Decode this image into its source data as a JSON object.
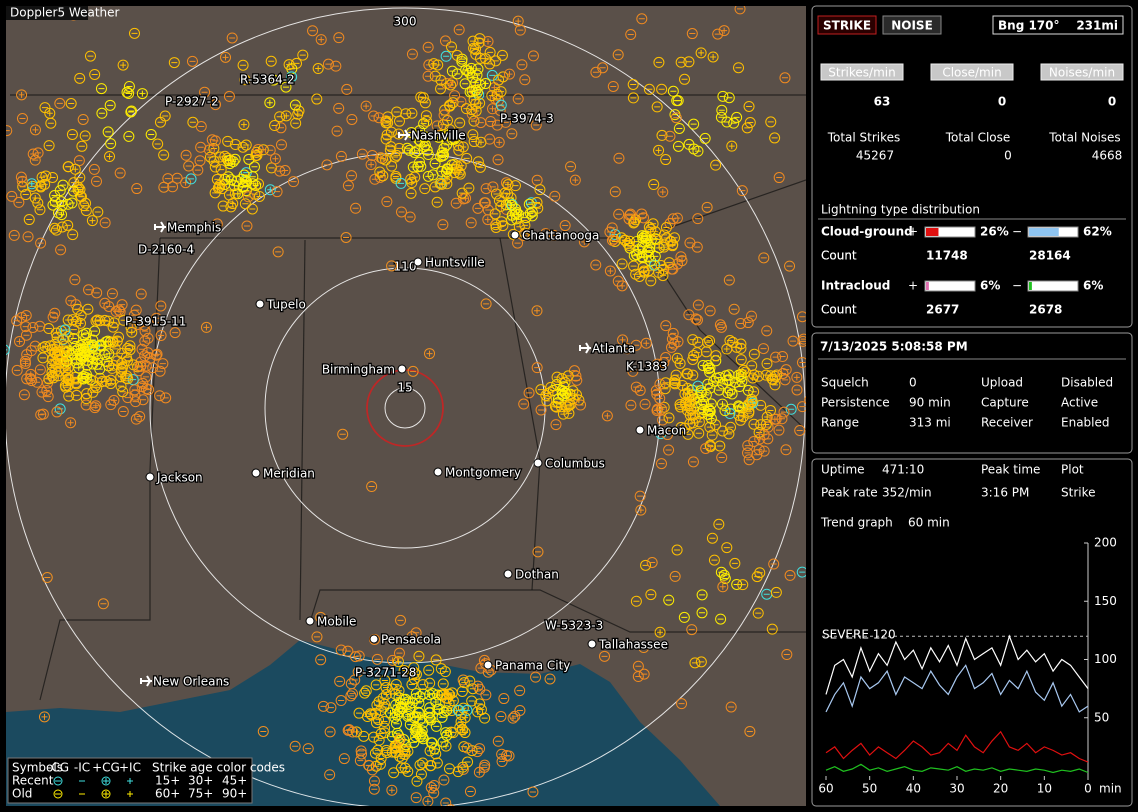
{
  "map": {
    "badge": "Doppler5 Weather",
    "ring_labels": [
      "300",
      "110",
      "15"
    ],
    "storm_labels": [
      "R-5364-2",
      "P-2927-2",
      "P-3974-3",
      "D-2160-4",
      "P-3915-11",
      "K-1383",
      "W-5323-3",
      "P-3271-28"
    ],
    "cities": [
      "Nashville",
      "Memphis",
      "Chattanooga",
      "Huntsville",
      "Tupelo",
      "Atlanta",
      "Birmingham",
      "Macon",
      "Jackson",
      "Meridian",
      "Montgomery",
      "Columbus",
      "Dothan",
      "Mobile",
      "Pensacola",
      "Tallahassee",
      "Panama City",
      "New Orleans"
    ],
    "legend": {
      "symbols": "Symbols",
      "types": [
        "-CG",
        "-IC",
        "+CG",
        "+IC"
      ],
      "age_title": "Strike age color codes",
      "rows": [
        "Recent",
        "Old"
      ],
      "ages": [
        [
          "15+",
          "30+",
          "45+"
        ],
        [
          "60+",
          "75+",
          "90+"
        ]
      ]
    }
  },
  "status": {
    "strike": "STRIKE",
    "noise": "NOISE",
    "bearing": "Bng 170°",
    "distance": "231mi"
  },
  "rates": {
    "labels": [
      "Strikes/min",
      "Close/min",
      "Noises/min"
    ],
    "values": [
      63,
      0,
      0
    ],
    "total_labels": [
      "Total Strikes",
      "Total Close",
      "Total Noises"
    ],
    "totals": [
      45267,
      0,
      4668
    ]
  },
  "distribution": {
    "title": "Lightning type distribution",
    "count_label": "Count",
    "rows": [
      {
        "name": "Cloud-ground",
        "signs": [
          "+",
          "−"
        ],
        "values": [
          26,
          62
        ],
        "value_labels": [
          "26%",
          "62%"
        ],
        "colors": [
          "#e01010",
          "#8ec4f0"
        ],
        "counts": [
          11748,
          28164
        ]
      },
      {
        "name": "Intracloud",
        "signs": [
          "+",
          "−"
        ],
        "values": [
          6,
          6
        ],
        "value_labels": [
          "6%",
          "6%"
        ],
        "colors": [
          "#e070b0",
          "#20c020"
        ],
        "counts": [
          2677,
          2678
        ]
      }
    ]
  },
  "settings": {
    "datetime": "7/13/2025 5:08:58 PM",
    "items": [
      [
        "Squelch",
        0
      ],
      [
        "Persistence",
        "90 min"
      ],
      [
        "Range",
        "313 mi"
      ]
    ],
    "states": [
      [
        "Upload",
        "Disabled"
      ],
      [
        "Capture",
        "Active"
      ],
      [
        "Receiver",
        "Enabled"
      ]
    ]
  },
  "stats": {
    "uptime_label": "Uptime",
    "uptime": "471:10",
    "peak_time_label": "Peak time",
    "plot_label": "Plot",
    "peak_rate_label": "Peak rate",
    "peak_rate": "352/min",
    "peak_time": "3:16 PM",
    "plot": "Strike",
    "trend_label": "Trend graph",
    "trend_window": "60 min"
  },
  "trend": {
    "type": "line",
    "x": [
      60,
      58,
      56,
      54,
      52,
      50,
      48,
      46,
      44,
      42,
      40,
      38,
      36,
      34,
      32,
      30,
      28,
      26,
      24,
      22,
      20,
      18,
      16,
      14,
      12,
      10,
      8,
      6,
      4,
      2,
      0
    ],
    "xlim": [
      60,
      0
    ],
    "xticks": [
      60,
      50,
      40,
      30,
      20,
      10,
      0
    ],
    "x_unit": "min",
    "ylim": [
      0,
      200
    ],
    "yticks": [
      50,
      100,
      150,
      200
    ],
    "severe": 120,
    "severe_label": "SEVERE 120",
    "series": [
      {
        "color": "#ffffff",
        "values": [
          70,
          95,
          100,
          85,
          110,
          90,
          105,
          95,
          115,
          100,
          108,
          92,
          110,
          98,
          112,
          95,
          118,
          100,
          105,
          110,
          95,
          120,
          100,
          108,
          98,
          105,
          90,
          100,
          95,
          85,
          75
        ]
      },
      {
        "color": "#a8c8f0",
        "values": [
          55,
          70,
          80,
          60,
          85,
          75,
          80,
          90,
          70,
          85,
          80,
          75,
          90,
          78,
          70,
          85,
          95,
          75,
          80,
          88,
          70,
          82,
          75,
          90,
          72,
          65,
          80,
          60,
          70,
          55,
          60
        ]
      },
      {
        "color": "#e01010",
        "values": [
          20,
          25,
          15,
          22,
          28,
          18,
          25,
          20,
          15,
          22,
          30,
          25,
          18,
          20,
          28,
          22,
          35,
          25,
          20,
          30,
          38,
          25,
          22,
          28,
          20,
          25,
          22,
          18,
          20,
          15,
          12
        ]
      },
      {
        "color": "#20c020",
        "values": [
          5,
          8,
          4,
          6,
          10,
          5,
          7,
          4,
          6,
          8,
          5,
          4,
          7,
          6,
          5,
          8,
          4,
          6,
          5,
          7,
          4,
          6,
          5,
          4,
          6,
          5,
          3,
          5,
          4,
          6,
          3
        ]
      }
    ]
  }
}
